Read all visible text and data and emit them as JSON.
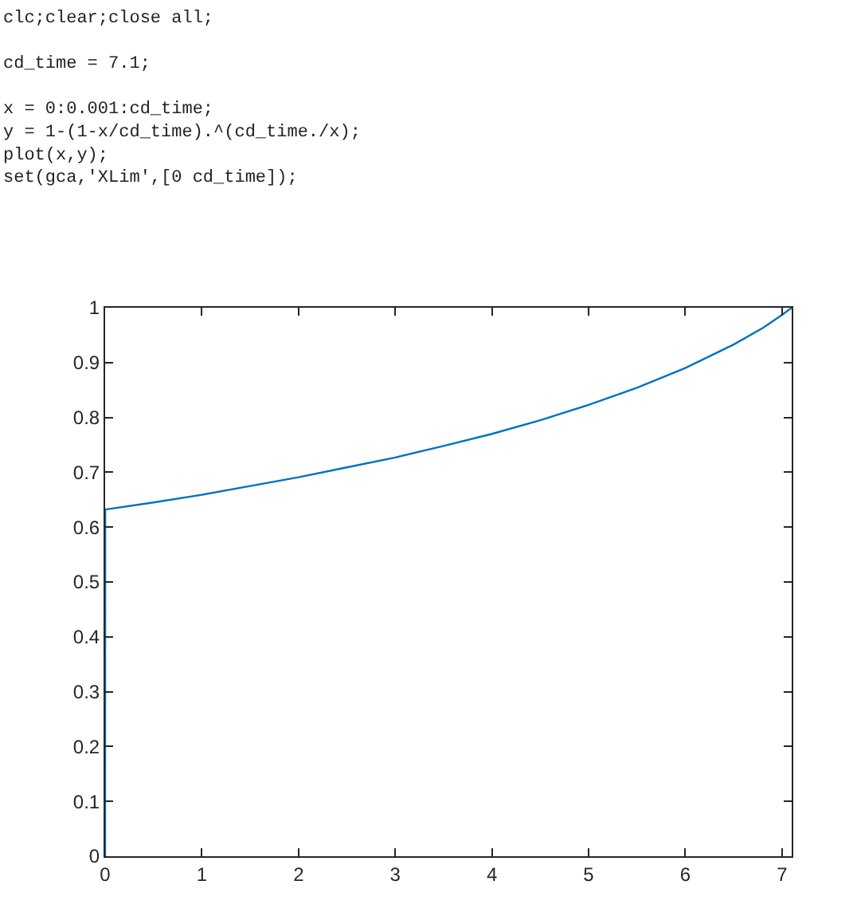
{
  "chart_data": {
    "type": "line",
    "annotations": [
      "clc;clear;close all;\n\ncd_time = 7.1;\n\nx = 0:0.001:cd_time;\ny = 1-(1-x/cd_time).^(cd_time./x);\nplot(x,y);\nset(gca,'XLim',[0 cd_time]);"
    ],
    "x": [
      0,
      0.001,
      0.5,
      1,
      1.5,
      2,
      2.5,
      3,
      3.5,
      4,
      4.5,
      5,
      5.5,
      6,
      6.5,
      6.8,
      7,
      7.1
    ],
    "series": [
      {
        "color": "#0072bd",
        "values": [
          0,
          0.632,
          0.645,
          0.659,
          0.675,
          0.691,
          0.709,
          0.727,
          0.748,
          0.77,
          0.795,
          0.823,
          0.854,
          0.89,
          0.933,
          0.963,
          0.987,
          1.0
        ]
      }
    ],
    "xlim": [
      0,
      7.1
    ],
    "xticks": [
      0,
      1,
      2,
      3,
      4,
      5,
      6,
      7
    ],
    "ylim": [
      0,
      1
    ],
    "yticks": [
      0,
      0.1,
      0.2,
      0.3,
      0.4,
      0.5,
      0.6,
      0.7,
      0.8,
      0.9,
      1
    ],
    "marker": "none",
    "line_style": "solid"
  }
}
